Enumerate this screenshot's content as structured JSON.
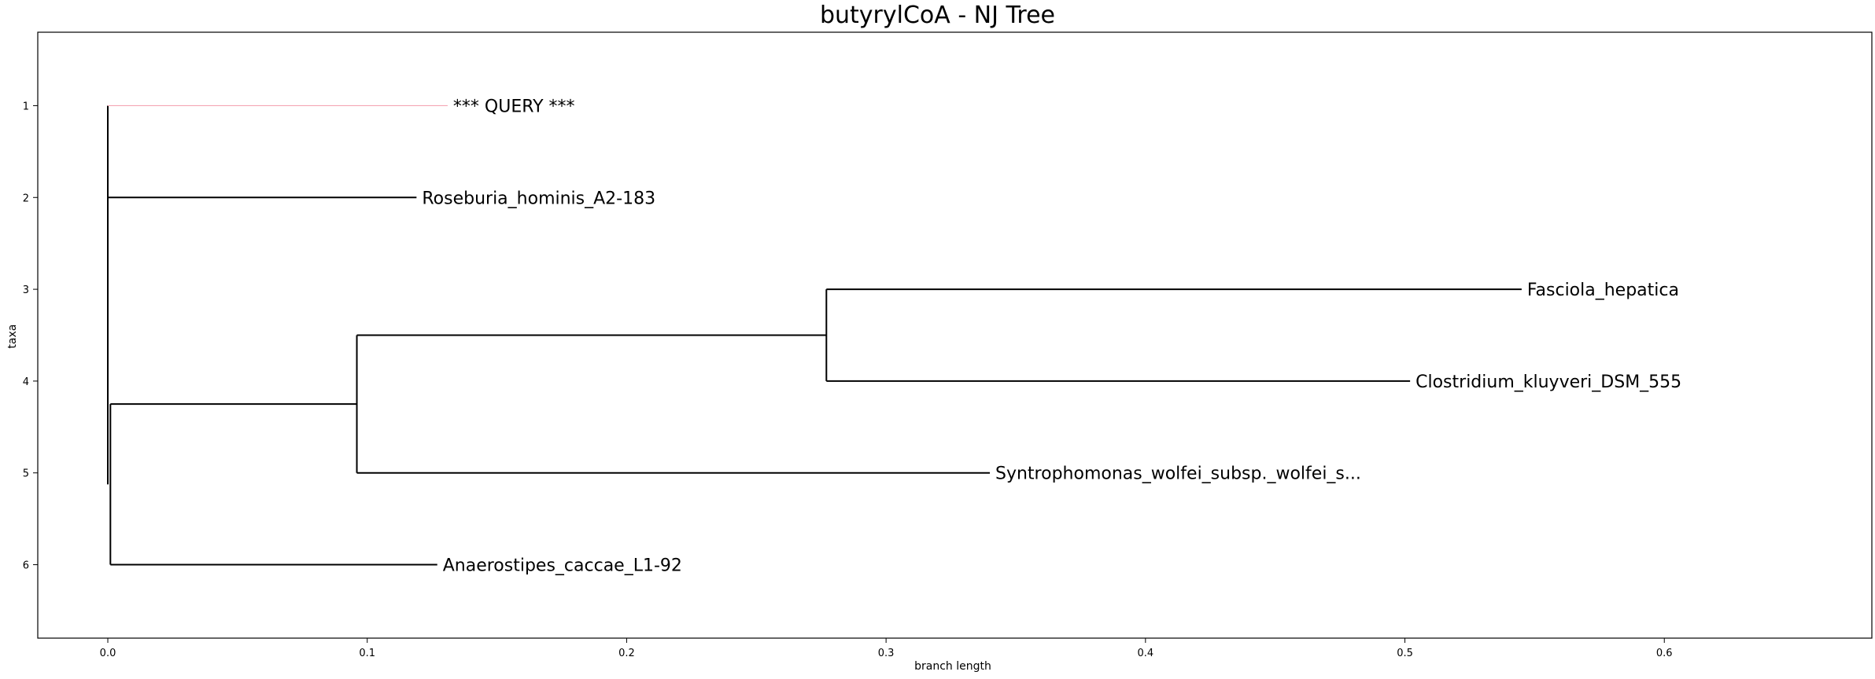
{
  "chart_data": {
    "type": "dendrogram",
    "title": "butyrylCoA - NJ Tree",
    "xlabel": "branch length",
    "ylabel": "taxa",
    "xlim": [
      -0.027,
      0.68
    ],
    "ylim": [
      6.8,
      0.2
    ],
    "xticks": [
      0.0,
      0.1,
      0.2,
      0.3,
      0.4,
      0.5,
      0.6
    ],
    "xtick_labels": [
      "0.0",
      "0.1",
      "0.2",
      "0.3",
      "0.4",
      "0.5",
      "0.6"
    ],
    "yticks": [
      1,
      2,
      3,
      4,
      5,
      6
    ],
    "ytick_labels": [
      "1",
      "2",
      "3",
      "4",
      "5",
      "6"
    ],
    "grid": false,
    "query_color": "#f4a6b4",
    "line_color": "#000000",
    "leaves": [
      {
        "label": "*** QUERY ***",
        "y": 1,
        "x_start": 0.0,
        "x_end": 0.131,
        "query": true
      },
      {
        "label": "Roseburia_hominis_A2-183",
        "y": 2,
        "x_start": 0.0,
        "x_end": 0.119
      },
      {
        "label": "Fasciola_hepatica",
        "y": 3,
        "x_start": 0.277,
        "x_end": 0.545
      },
      {
        "label": "Clostridium_kluyveri_DSM_555",
        "y": 4,
        "x_start": 0.277,
        "x_end": 0.502
      },
      {
        "label": "Syntrophomonas_wolfei_subsp._wolfei_s...",
        "y": 5,
        "x_start": 0.096,
        "x_end": 0.34
      },
      {
        "label": "Anaerostipes_caccae_L1-92",
        "y": 6,
        "x_start": 0.001,
        "x_end": 0.127
      }
    ],
    "internal_edges": [
      {
        "x_start": 0.096,
        "x_end": 0.277,
        "y": 3.5
      },
      {
        "x_start": 0.001,
        "x_end": 0.096,
        "y": 4.25
      }
    ],
    "vertical_connectors": [
      {
        "x": 0.0,
        "y1": 1,
        "y2": 5.125
      },
      {
        "x": 0.001,
        "y1": 4.25,
        "y2": 6
      },
      {
        "x": 0.096,
        "y1": 3.5,
        "y2": 5
      },
      {
        "x": 0.277,
        "y1": 3,
        "y2": 4
      }
    ]
  }
}
